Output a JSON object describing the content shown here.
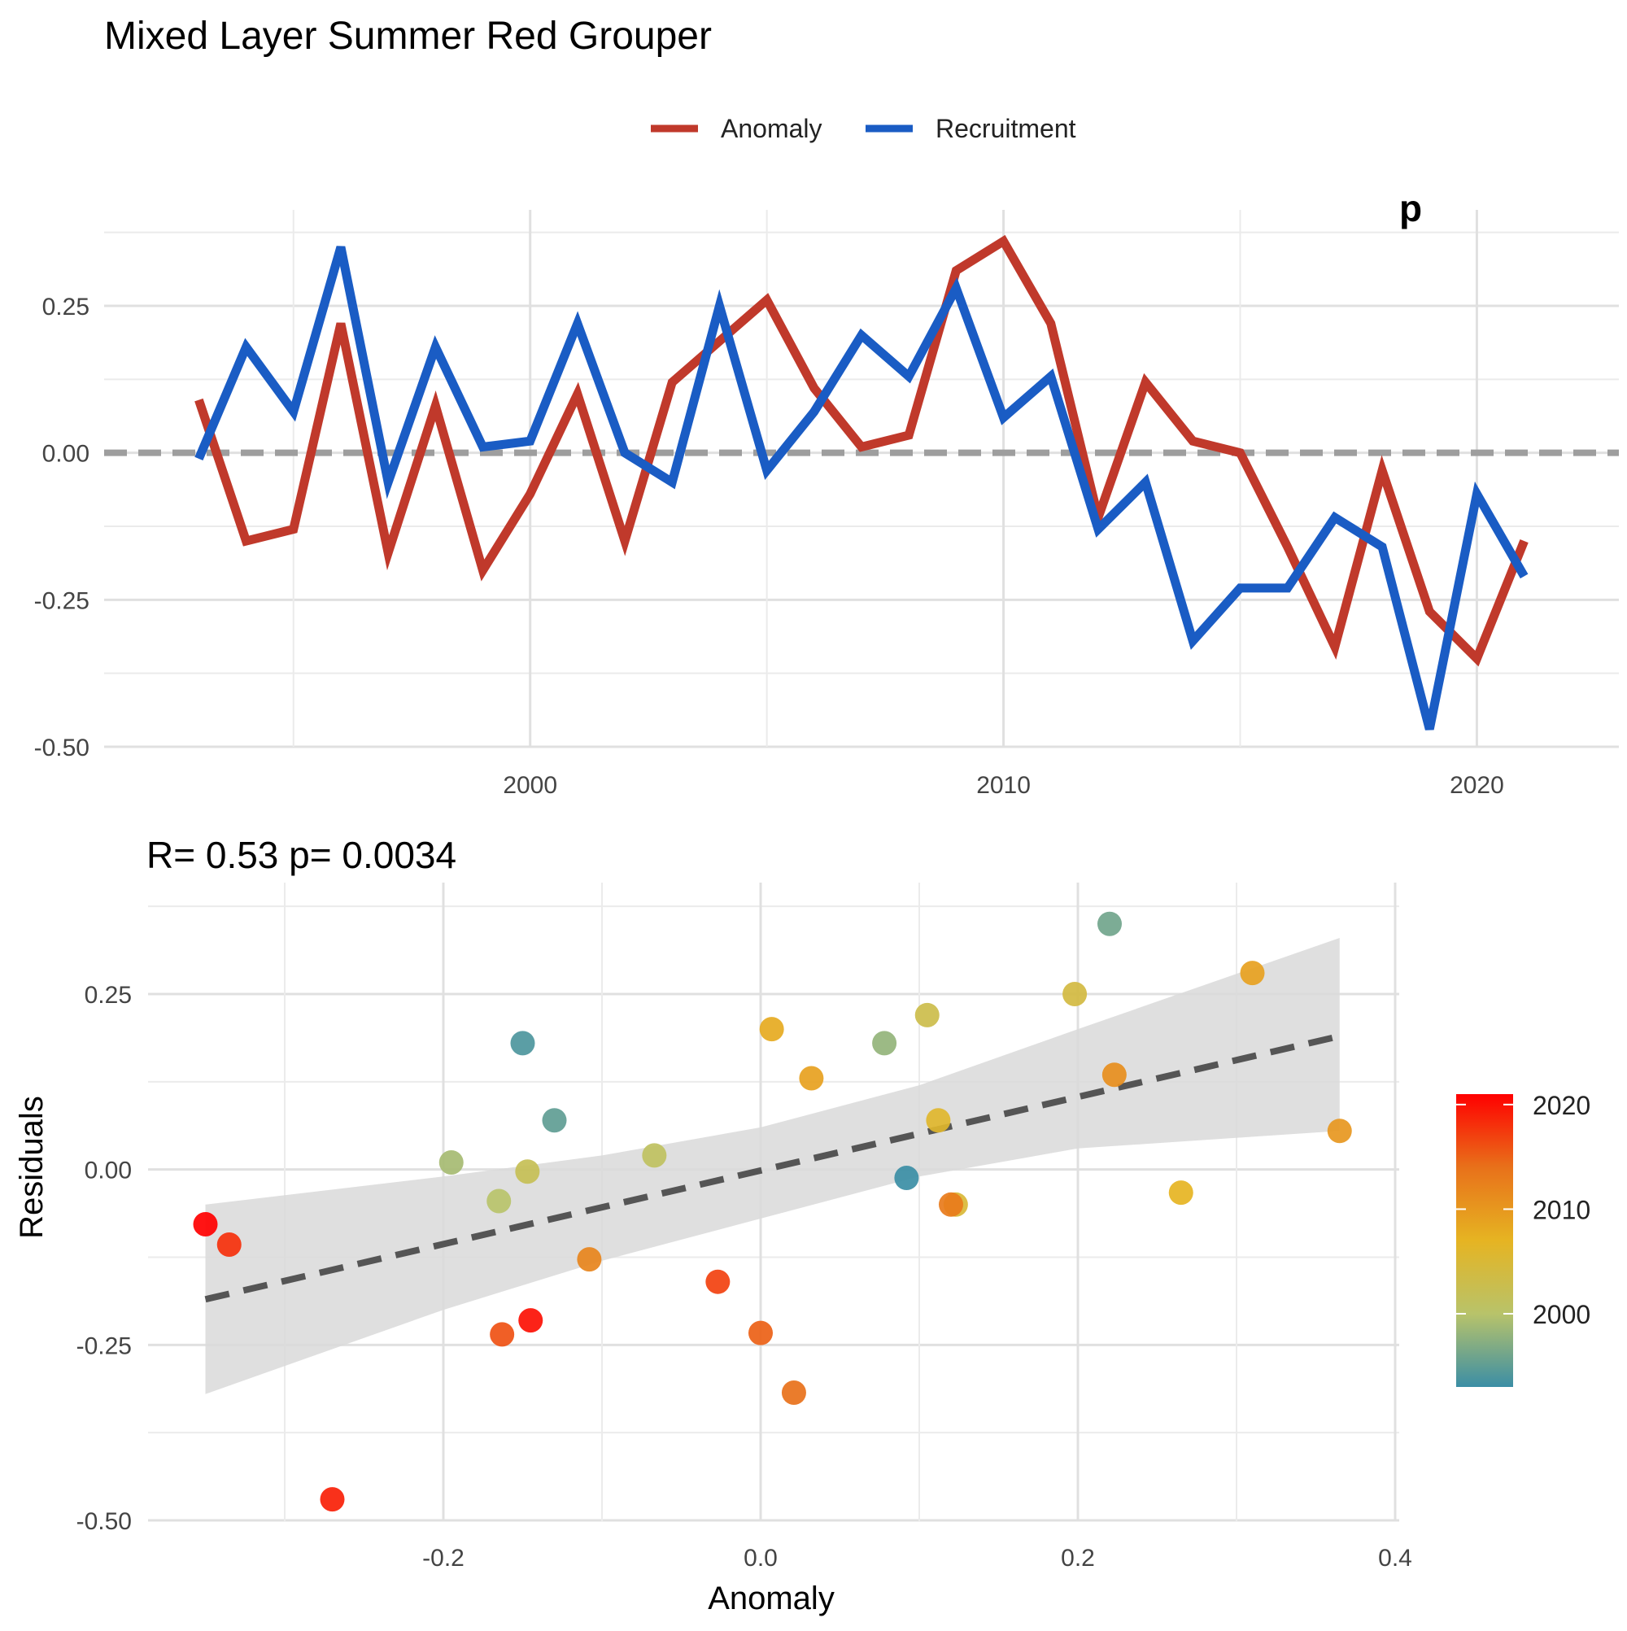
{
  "title": "Mixed Layer Summer Red Grouper",
  "legend": {
    "position": "top",
    "items": [
      {
        "label": "Anomaly",
        "color": "#C0392B"
      },
      {
        "label": "Recruitment",
        "color": "#1A5CC4"
      }
    ]
  },
  "top_corner_fragment": "p",
  "scatter_stats": "R= 0.53  p= 0.0034",
  "colorbar": {
    "ticks": [
      "2020",
      "2010",
      "2000"
    ],
    "tick_values": [
      2020,
      2010,
      2000
    ],
    "range": [
      1993,
      2021
    ],
    "colors": [
      "#3B8EA5",
      "#B8C36A",
      "#E6B422",
      "#E8711A",
      "#FF0000"
    ]
  },
  "chart_data": [
    {
      "type": "line",
      "x": [
        1993,
        1994,
        1995,
        1996,
        1997,
        1998,
        1999,
        2000,
        2001,
        2002,
        2003,
        2004,
        2005,
        2006,
        2007,
        2008,
        2009,
        2010,
        2011,
        2012,
        2013,
        2014,
        2015,
        2016,
        2017,
        2018,
        2019,
        2020,
        2021
      ],
      "series": [
        {
          "name": "Anomaly",
          "color": "#C0392B",
          "values": [
            0.09,
            -0.15,
            -0.13,
            0.22,
            -0.17,
            0.08,
            -0.2,
            -0.07,
            0.1,
            -0.15,
            0.12,
            0.19,
            0.26,
            0.11,
            0.01,
            0.03,
            0.31,
            0.36,
            0.22,
            -0.11,
            0.12,
            0.02,
            0.0,
            -0.16,
            -0.33,
            -0.03,
            -0.27,
            -0.35,
            -0.15
          ]
        },
        {
          "name": "Recruitment",
          "color": "#1A5CC4",
          "values": [
            -0.01,
            0.18,
            0.07,
            0.35,
            -0.05,
            0.18,
            0.01,
            0.02,
            0.22,
            0.0,
            -0.05,
            0.25,
            -0.03,
            0.07,
            0.2,
            0.13,
            0.28,
            0.06,
            0.13,
            -0.13,
            -0.05,
            -0.32,
            -0.23,
            -0.23,
            -0.11,
            -0.16,
            -0.47,
            -0.07,
            -0.21
          ]
        }
      ],
      "reference_line": 0,
      "xlim": [
        1991,
        2023
      ],
      "ylim": [
        -0.5,
        0.38
      ],
      "xticks": [
        2000,
        2010,
        2020
      ],
      "yticks": [
        0.25,
        0.0,
        -0.25,
        -0.5
      ],
      "ytick_labels": [
        "0.25",
        "0.00",
        "-0.25",
        "-0.50"
      ],
      "grid": true
    },
    {
      "type": "scatter",
      "xlabel": "Anomaly",
      "ylabel": "Residuals",
      "xlim": [
        -0.385,
        0.405
      ],
      "ylim": [
        -0.5,
        0.38
      ],
      "xticks": [
        -0.2,
        0.0,
        0.2,
        0.4
      ],
      "xtick_labels": [
        "-0.2",
        "0.0",
        "0.2",
        "0.4"
      ],
      "yticks": [
        0.25,
        0.0,
        -0.25,
        -0.5
      ],
      "ytick_labels": [
        "0.25",
        "0.00",
        "-0.25",
        "-0.50"
      ],
      "grid": true,
      "points": [
        {
          "x": 0.22,
          "y": 0.35,
          "year": 1996
        },
        {
          "x": -0.15,
          "y": 0.18,
          "year": 1994
        },
        {
          "x": 0.078,
          "y": 0.18,
          "year": 1998
        },
        {
          "x": -0.13,
          "y": 0.07,
          "year": 1995
        },
        {
          "x": -0.195,
          "y": 0.01,
          "year": 1999
        },
        {
          "x": -0.165,
          "y": -0.045,
          "year": 2000
        },
        {
          "x": -0.147,
          "y": -0.003,
          "year": 2002
        },
        {
          "x": -0.067,
          "y": 0.02,
          "year": 2001
        },
        {
          "x": 0.092,
          "y": -0.012,
          "year": 1993
        },
        {
          "x": 0.105,
          "y": 0.22,
          "year": 2003
        },
        {
          "x": 0.112,
          "y": 0.07,
          "year": 2006
        },
        {
          "x": 0.123,
          "y": -0.05,
          "year": 2005
        },
        {
          "x": 0.198,
          "y": 0.25,
          "year": 2004
        },
        {
          "x": 0.265,
          "y": -0.033,
          "year": 2007
        },
        {
          "x": 0.223,
          "y": 0.135,
          "year": 2011
        },
        {
          "x": 0.31,
          "y": 0.28,
          "year": 2009
        },
        {
          "x": 0.365,
          "y": 0.055,
          "year": 2010
        },
        {
          "x": 0.007,
          "y": 0.2,
          "year": 2008
        },
        {
          "x": 0.032,
          "y": 0.13,
          "year": 2009
        },
        {
          "x": -0.108,
          "y": -0.128,
          "year": 2012
        },
        {
          "x": 0.12,
          "y": -0.05,
          "year": 2013
        },
        {
          "x": 0.021,
          "y": -0.318,
          "year": 2014
        },
        {
          "x": 0.0,
          "y": -0.233,
          "year": 2015
        },
        {
          "x": -0.163,
          "y": -0.235,
          "year": 2016
        },
        {
          "x": -0.027,
          "y": -0.16,
          "year": 2017
        },
        {
          "x": -0.27,
          "y": -0.47,
          "year": 2019
        },
        {
          "x": -0.145,
          "y": -0.215,
          "year": 2020
        },
        {
          "x": -0.35,
          "y": -0.078,
          "year": 2021
        },
        {
          "x": -0.335,
          "y": -0.107,
          "year": 2018
        }
      ],
      "fit": {
        "x": [
          -0.35,
          0.365
        ],
        "y": [
          -0.185,
          0.19
        ],
        "style": "dashed",
        "color": "#555555"
      },
      "confidence_band": {
        "x": [
          -0.35,
          -0.2,
          -0.1,
          0.0,
          0.1,
          0.2,
          0.365
        ],
        "lower": [
          -0.32,
          -0.2,
          -0.13,
          -0.07,
          -0.01,
          0.03,
          0.055
        ],
        "upper": [
          -0.05,
          -0.01,
          0.02,
          0.06,
          0.12,
          0.2,
          0.33
        ],
        "color": "#D9D9D9"
      }
    }
  ]
}
